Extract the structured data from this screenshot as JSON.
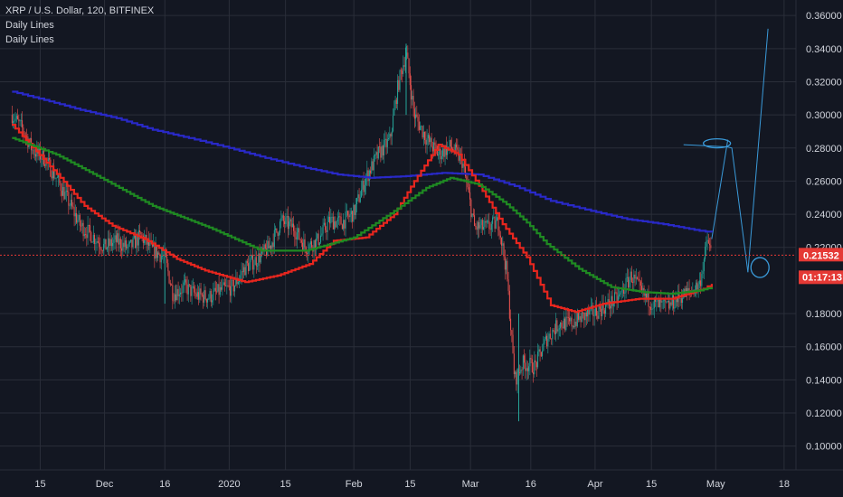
{
  "header": {
    "title": "XRP / U.S. Dollar, 120, BITFINEX",
    "indicators": [
      "Daily Lines",
      "Daily Lines"
    ]
  },
  "colors": {
    "background": "#131722",
    "grid": "#2a2e39",
    "text": "#d1d4dc",
    "candle_up": "#26a69a",
    "candle_down": "#ef5350",
    "ma_blue": "#2929c8",
    "ma_red": "#e8261e",
    "ma_green": "#1f8a22",
    "drawing": "#3a9ad9",
    "price_badge": "#e53935"
  },
  "chart_data": {
    "type": "line",
    "title": "XRP / U.S. Dollar, 120, BITFINEX",
    "x_ticks": [
      "15",
      "Dec",
      "16",
      "2020",
      "15",
      "Feb",
      "15",
      "Mar",
      "16",
      "Apr",
      "15",
      "May",
      "18"
    ],
    "y_ticks": [
      "0.36000",
      "0.34000",
      "0.32000",
      "0.30000",
      "0.28000",
      "0.26000",
      "0.24000",
      "0.22000",
      "0.18000",
      "0.16000",
      "0.14000",
      "0.12000",
      "0.10000"
    ],
    "ylim": [
      0.09,
      0.365
    ],
    "grid": true,
    "last_price": "0.21532",
    "countdown": "01:17:13",
    "x_dates": [
      "2019-11-08",
      "2019-11-11",
      "2019-11-13",
      "2019-11-16",
      "2019-11-19",
      "2019-11-22",
      "2019-11-25",
      "2019-11-28",
      "2019-12-01",
      "2019-12-04",
      "2019-12-07",
      "2019-12-10",
      "2019-12-13",
      "2019-12-16",
      "2019-12-18",
      "2019-12-21",
      "2019-12-24",
      "2019-12-27",
      "2019-12-30",
      "2020-01-02",
      "2020-01-05",
      "2020-01-08",
      "2020-01-11",
      "2020-01-14",
      "2020-01-17",
      "2020-01-20",
      "2020-01-23",
      "2020-01-26",
      "2020-01-29",
      "2020-02-01",
      "2020-02-04",
      "2020-02-07",
      "2020-02-10",
      "2020-02-12",
      "2020-02-14",
      "2020-02-16",
      "2020-02-19",
      "2020-02-22",
      "2020-02-25",
      "2020-02-28",
      "2020-03-02",
      "2020-03-05",
      "2020-03-08",
      "2020-03-10",
      "2020-03-12",
      "2020-03-14",
      "2020-03-17",
      "2020-03-20",
      "2020-03-23",
      "2020-03-26",
      "2020-03-29",
      "2020-04-01",
      "2020-04-04",
      "2020-04-07",
      "2020-04-10",
      "2020-04-13",
      "2020-04-16",
      "2020-04-19",
      "2020-04-22",
      "2020-04-25",
      "2020-04-27",
      "2020-04-29",
      "2020-04-30"
    ],
    "price": [
      0.3,
      0.29,
      0.279,
      0.274,
      0.262,
      0.248,
      0.233,
      0.227,
      0.22,
      0.224,
      0.219,
      0.227,
      0.218,
      0.214,
      0.192,
      0.196,
      0.191,
      0.19,
      0.194,
      0.196,
      0.208,
      0.213,
      0.22,
      0.236,
      0.232,
      0.22,
      0.224,
      0.236,
      0.235,
      0.241,
      0.262,
      0.276,
      0.285,
      0.318,
      0.338,
      0.3,
      0.286,
      0.276,
      0.281,
      0.272,
      0.232,
      0.232,
      0.235,
      0.205,
      0.14,
      0.15,
      0.148,
      0.165,
      0.174,
      0.174,
      0.178,
      0.181,
      0.185,
      0.19,
      0.203,
      0.191,
      0.185,
      0.184,
      0.19,
      0.194,
      0.198,
      0.225,
      0.215
    ],
    "series": [
      {
        "values_x": [
          "2019-11-08",
          "2019-11-16",
          "2019-11-25",
          "2019-12-04",
          "2019-12-13",
          "2019-12-22",
          "2020-01-01",
          "2020-01-10",
          "2020-01-20",
          "2020-01-28",
          "2020-02-05",
          "2020-02-14",
          "2020-02-23",
          "2020-03-03",
          "2020-03-12",
          "2020-03-21",
          "2020-03-31",
          "2020-04-09",
          "2020-04-18",
          "2020-04-27",
          "2020-04-30"
        ],
        "values": [
          0.314,
          0.309,
          0.303,
          0.298,
          0.291,
          0.286,
          0.28,
          0.274,
          0.268,
          0.264,
          0.262,
          0.263,
          0.265,
          0.264,
          0.257,
          0.248,
          0.242,
          0.237,
          0.234,
          0.23,
          0.229
        ]
      },
      {
        "values_x": [
          "2019-11-08",
          "2019-11-14",
          "2019-11-20",
          "2019-11-26",
          "2019-12-03",
          "2019-12-11",
          "2019-12-19",
          "2019-12-26",
          "2020-01-05",
          "2020-01-13",
          "2020-01-21",
          "2020-01-27",
          "2020-02-04",
          "2020-02-11",
          "2020-02-16",
          "2020-02-22",
          "2020-02-27",
          "2020-03-04",
          "2020-03-09",
          "2020-03-15",
          "2020-03-21",
          "2020-03-27",
          "2020-04-03",
          "2020-04-12",
          "2020-04-20",
          "2020-04-28",
          "2020-04-30"
        ],
        "values": [
          0.294,
          0.278,
          0.262,
          0.245,
          0.233,
          0.225,
          0.213,
          0.206,
          0.199,
          0.203,
          0.21,
          0.224,
          0.226,
          0.24,
          0.26,
          0.282,
          0.276,
          0.254,
          0.234,
          0.214,
          0.185,
          0.181,
          0.186,
          0.189,
          0.189,
          0.195,
          0.198
        ]
      },
      {
        "values_x": [
          "2019-11-08",
          "2019-11-19",
          "2019-11-30",
          "2019-12-13",
          "2019-12-27",
          "2020-01-09",
          "2020-01-20",
          "2020-02-01",
          "2020-02-11",
          "2020-02-19",
          "2020-02-25",
          "2020-03-03",
          "2020-03-10",
          "2020-03-15",
          "2020-03-20",
          "2020-03-28",
          "2020-04-05",
          "2020-04-13",
          "2020-04-20",
          "2020-04-27",
          "2020-04-30"
        ],
        "values": [
          0.286,
          0.276,
          0.262,
          0.245,
          0.232,
          0.218,
          0.218,
          0.226,
          0.242,
          0.256,
          0.262,
          0.258,
          0.246,
          0.235,
          0.222,
          0.207,
          0.196,
          0.193,
          0.192,
          0.194,
          0.196
        ]
      }
    ],
    "drawing_points": [
      [
        "2020-04-23",
        0.282
      ],
      [
        "2020-05-04",
        0.285
      ],
      [
        "2020-05-05",
        0.28
      ],
      [
        "2020-05-09",
        0.205
      ],
      [
        "2020-05-12",
        0.21
      ],
      [
        "2020-05-14",
        0.352
      ]
    ]
  }
}
